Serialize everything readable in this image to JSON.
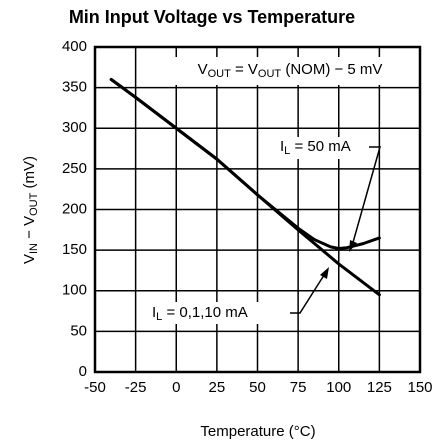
{
  "chart_data": {
    "type": "line",
    "title": "Min Input Voltage vs Temperature",
    "x_label": "Temperature (°C)",
    "y_label_parts": [
      "V",
      "IN",
      " − V",
      "OUT",
      " (mV)"
    ],
    "annotation_parts": [
      "V",
      "OUT",
      " = V",
      "OUT",
      " (NOM) − 5 mV"
    ],
    "xlim": [
      -50,
      150
    ],
    "xticks": [
      -50,
      -25,
      0,
      25,
      50,
      75,
      100,
      125,
      150
    ],
    "ylim": [
      0,
      400
    ],
    "yticks": [
      0,
      50,
      100,
      150,
      200,
      250,
      300,
      350,
      400
    ],
    "grid": true,
    "series": [
      {
        "label_parts": [
          "I",
          "L",
          " = 0,1,10 mA"
        ],
        "color": "#000000",
        "x": [
          -40,
          -25,
          0,
          25,
          50,
          75,
          100,
          125
        ],
        "values": [
          360,
          338,
          300,
          262,
          218,
          175,
          133,
          95
        ]
      },
      {
        "label_parts": [
          "I",
          "L",
          " = 50 mA"
        ],
        "color": "#000000",
        "x": [
          -40,
          -25,
          0,
          25,
          50,
          75,
          85,
          95,
          100,
          105,
          115,
          125
        ],
        "values": [
          360,
          338,
          300,
          262,
          218,
          177,
          163,
          154,
          152,
          153,
          158,
          165
        ]
      }
    ]
  }
}
